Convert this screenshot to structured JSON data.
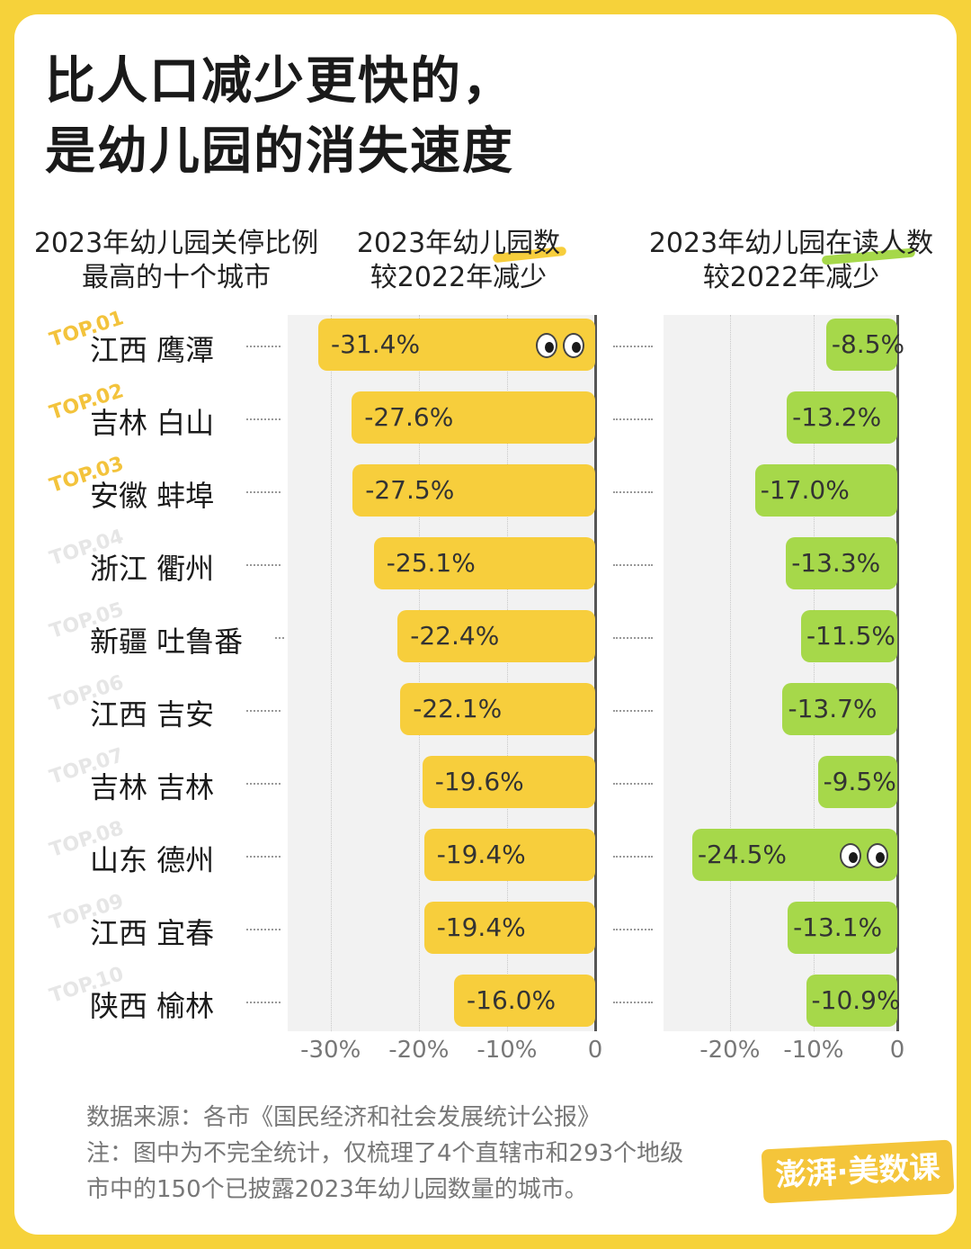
{
  "colors": {
    "background": "#f6d23a",
    "yellow_bar": "#f7ce3c",
    "green_bar": "#a6d84a",
    "top_tag_highlight": "#f3c33c",
    "top_tag_dim": "#e6e6e6"
  },
  "title": {
    "line1": "比人口减少更快的，",
    "line2": "是幼儿园的消失速度"
  },
  "headers": {
    "cities_line1": "2023年幼儿园关停比例",
    "cities_line2": "最高的十个城市",
    "kindergartens_line1": "2023年幼儿园数",
    "kindergartens_line2": "较2022年减少",
    "enrollment_line1": "2023年幼儿园在读人数",
    "enrollment_line2": "较2022年减少"
  },
  "top_tags": [
    "TOP.01",
    "TOP.02",
    "TOP.03",
    "TOP.04",
    "TOP.05",
    "TOP.06",
    "TOP.07",
    "TOP.08",
    "TOP.09",
    "TOP.10"
  ],
  "chart_data": [
    {
      "type": "bar",
      "orientation": "horizontal",
      "title": "2023年幼儿园数较2022年减少",
      "categories": [
        "江西 鹰潭",
        "吉林 白山",
        "安徽 蚌埠",
        "浙江 衢州",
        "新疆 吐鲁番",
        "江西 吉安",
        "吉林 吉林",
        "山东 德州",
        "江西 宜春",
        "陕西 榆林"
      ],
      "values": [
        -31.4,
        -27.6,
        -27.5,
        -25.1,
        -22.4,
        -22.1,
        -19.6,
        -19.4,
        -19.4,
        -16.0
      ],
      "value_labels": [
        "-31.4%",
        "-27.6%",
        "-27.5%",
        "-25.1%",
        "-22.4%",
        "-22.1%",
        "-19.6%",
        "-19.4%",
        "-19.4%",
        "-16.0%"
      ],
      "xlim": [
        -31.4,
        0
      ],
      "x_ticks": [
        -30,
        -20,
        -10,
        0
      ],
      "x_tick_labels": [
        "-30%",
        "-20%",
        "-10%",
        "0"
      ],
      "grid": true
    },
    {
      "type": "bar",
      "orientation": "horizontal",
      "title": "2023年幼儿园在读人数较2022年减少",
      "categories": [
        "江西 鹰潭",
        "吉林 白山",
        "安徽 蚌埠",
        "浙江 衢州",
        "新疆 吐鲁番",
        "江西 吉安",
        "吉林 吉林",
        "山东 德州",
        "江西 宜春",
        "陕西 榆林"
      ],
      "values": [
        -8.5,
        -13.2,
        -17.0,
        -13.3,
        -11.5,
        -13.7,
        -9.5,
        -24.5,
        -13.1,
        -10.9
      ],
      "value_labels": [
        "-8.5%",
        "-13.2%",
        "-17.0%",
        "-13.3%",
        "-11.5%",
        "-13.7%",
        "-9.5%",
        "-24.5%",
        "-13.1%",
        "-10.9%"
      ],
      "xlim": [
        -26,
        0
      ],
      "x_ticks": [
        -20,
        -10,
        0
      ],
      "x_tick_labels": [
        "-20%",
        "-10%",
        "0"
      ],
      "grid": true
    }
  ],
  "footer": {
    "source": "数据来源：各市《国民经济和社会发展统计公报》",
    "note_line1": "注：图中为不完全统计，仅梳理了4个直辖市和293个地级",
    "note_line2": "市中的150个已披露2023年幼儿园数量的城市。"
  },
  "logo": {
    "text": "澎湃·美数课"
  }
}
